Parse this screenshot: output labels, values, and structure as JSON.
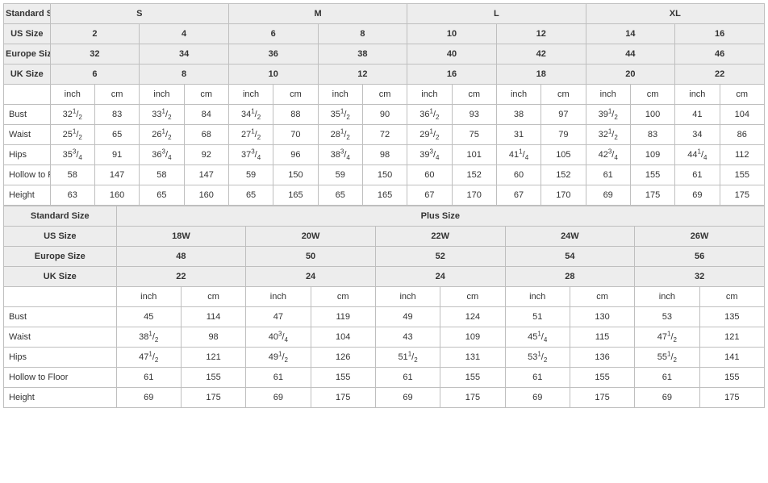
{
  "colors": {
    "border": "#bfbfbf",
    "header_bg": "#ededed",
    "text": "#333333",
    "bg": "#ffffff"
  },
  "labels": {
    "standard_size": "Standard Size",
    "us_size": "US Size",
    "europe_size": "Europe Size",
    "uk_size": "UK Size",
    "plus_size": "Plus Size",
    "inch": "inch",
    "cm": "cm"
  },
  "standard": {
    "sizes": [
      "S",
      "M",
      "L",
      "XL"
    ],
    "us": [
      "2",
      "4",
      "6",
      "8",
      "10",
      "12",
      "14",
      "16"
    ],
    "eu": [
      "32",
      "34",
      "36",
      "38",
      "40",
      "42",
      "44",
      "46"
    ],
    "uk": [
      "6",
      "8",
      "10",
      "12",
      "16",
      "18",
      "20",
      "22"
    ],
    "rows": [
      {
        "label": "Bust",
        "inch": [
          "32 1/2",
          "33 1/2",
          "34 1/2",
          "35 1/2",
          "36 1/2",
          "38",
          "39 1/2",
          "41"
        ],
        "cm": [
          "83",
          "84",
          "88",
          "90",
          "93",
          "97",
          "100",
          "104"
        ]
      },
      {
        "label": "Waist",
        "inch": [
          "25 1/2",
          "26 1/2",
          "27 1/2",
          "28 1/2",
          "29 1/2",
          "31",
          "32 1/2",
          "34"
        ],
        "cm": [
          "65",
          "68",
          "70",
          "72",
          "75",
          "79",
          "83",
          "86"
        ]
      },
      {
        "label": "Hips",
        "inch": [
          "35 3/4",
          "36 3/4",
          "37 3/4",
          "38 3/4",
          "39 3/4",
          "41 1/4",
          "42 3/4",
          "44 1/4"
        ],
        "cm": [
          "91",
          "92",
          "96",
          "98",
          "101",
          "105",
          "109",
          "112"
        ]
      },
      {
        "label": "Hollow to Floor",
        "inch": [
          "58",
          "58",
          "59",
          "59",
          "60",
          "60",
          "61",
          "61"
        ],
        "cm": [
          "147",
          "147",
          "150",
          "150",
          "152",
          "152",
          "155",
          "155"
        ]
      },
      {
        "label": "Height",
        "inch": [
          "63",
          "65",
          "65",
          "65",
          "67",
          "67",
          "69",
          "69"
        ],
        "cm": [
          "160",
          "160",
          "165",
          "165",
          "170",
          "170",
          "175",
          "175"
        ]
      }
    ]
  },
  "plus": {
    "us": [
      "18W",
      "20W",
      "22W",
      "24W",
      "26W"
    ],
    "eu": [
      "48",
      "50",
      "52",
      "54",
      "56"
    ],
    "uk": [
      "22",
      "24",
      "24",
      "28",
      "32"
    ],
    "rows": [
      {
        "label": "Bust",
        "inch": [
          "45",
          "47",
          "49",
          "51",
          "53"
        ],
        "cm": [
          "114",
          "119",
          "124",
          "130",
          "135"
        ]
      },
      {
        "label": "Waist",
        "inch": [
          "38 1/2",
          "40 3/4",
          "43",
          "45 1/4",
          "47 1/2"
        ],
        "cm": [
          "98",
          "104",
          "109",
          "115",
          "121"
        ]
      },
      {
        "label": "Hips",
        "inch": [
          "47 1/2",
          "49 1/2",
          "51 1/2",
          "53 1/2",
          "55 1/2"
        ],
        "cm": [
          "121",
          "126",
          "131",
          "136",
          "141"
        ]
      },
      {
        "label": "Hollow to Floor",
        "inch": [
          "61",
          "61",
          "61",
          "61",
          "61"
        ],
        "cm": [
          "155",
          "155",
          "155",
          "155",
          "155"
        ]
      },
      {
        "label": "Height",
        "inch": [
          "69",
          "69",
          "69",
          "69",
          "69"
        ],
        "cm": [
          "175",
          "175",
          "175",
          "175",
          "175"
        ]
      }
    ]
  }
}
